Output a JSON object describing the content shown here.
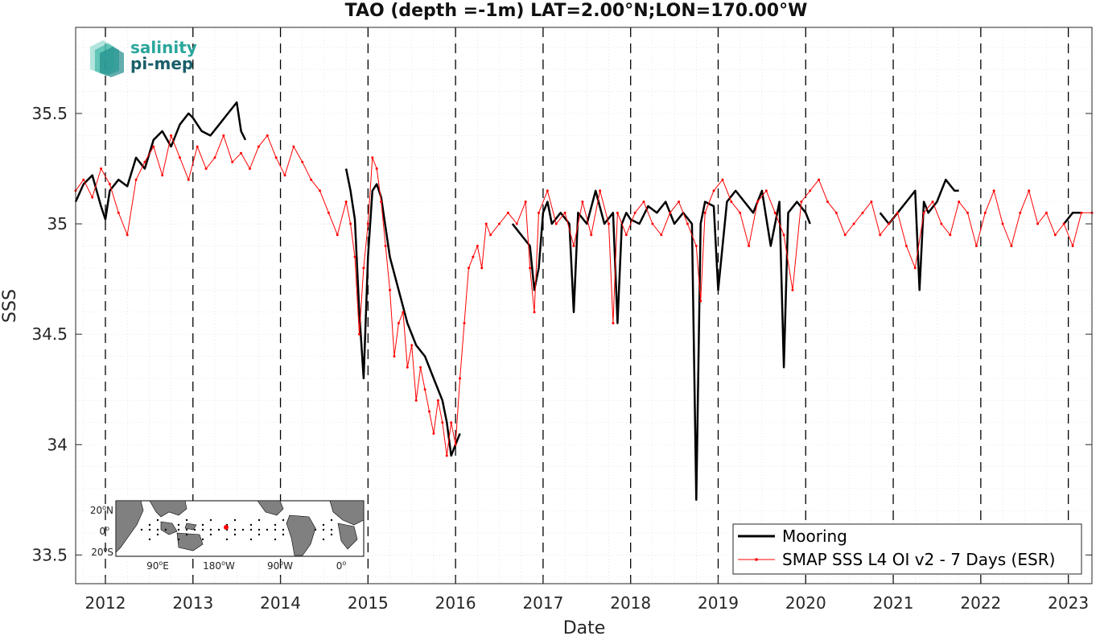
{
  "logo": {
    "line1": "salinity",
    "line2": "pi-mep",
    "color1": "#2aa69c",
    "color2": "#1a5e6a"
  },
  "inset_map": {
    "lat_labels": [
      {
        "value": "20",
        "hemi": "N"
      },
      {
        "value": "0",
        "hemi": ""
      },
      {
        "value": "20",
        "hemi": "S"
      }
    ],
    "lon_labels": [
      {
        "value": "90",
        "hemi": "E"
      },
      {
        "value": "180",
        "hemi": "W"
      },
      {
        "value": "90",
        "hemi": "W"
      },
      {
        "value": "0",
        "hemi": ""
      }
    ],
    "land_color": "#808080",
    "mooring_color": "#ff0000"
  },
  "chart_data": {
    "type": "line",
    "title": "TAO (depth =-1m) LAT=2.00°N;LON=170.00°W",
    "xlabel": "Date",
    "ylabel": "SSS",
    "xlim": [
      2011.66,
      2023.27
    ],
    "ylim": [
      33.37,
      35.89
    ],
    "yticks": [
      33.5,
      34,
      34.5,
      35,
      35.5
    ],
    "ytick_labels": [
      "33.5",
      "34",
      "34.5",
      "35",
      "35.5"
    ],
    "xticks": [
      2012,
      2013,
      2014,
      2015,
      2016,
      2017,
      2018,
      2019,
      2020,
      2021,
      2022,
      2023
    ],
    "xtick_labels": [
      "2012",
      "2013",
      "2014",
      "2015",
      "2016",
      "2017",
      "2018",
      "2019",
      "2020",
      "2021",
      "2022",
      "2023"
    ],
    "vlines": [
      2012,
      2013,
      2014,
      2015,
      2016,
      2017,
      2018,
      2019,
      2020,
      2021,
      2022,
      2023
    ],
    "grid": true,
    "legend_position": "bottom-right",
    "series": [
      {
        "name": "Mooring",
        "color": "#000000",
        "x": [
          2011.66,
          2011.75,
          2011.85,
          2011.95,
          2012.0,
          2012.05,
          2012.15,
          2012.25,
          2012.35,
          2012.45,
          2012.55,
          2012.65,
          2012.75,
          2012.85,
          2012.95,
          2013.0,
          2013.1,
          2013.2,
          2013.3,
          2013.4,
          2013.5,
          2013.55,
          2013.6,
          null,
          2014.75,
          2014.8,
          2014.85,
          2014.9,
          2014.95,
          2015.0,
          2015.05,
          2015.1,
          2015.15,
          2015.25,
          2015.35,
          2015.45,
          2015.55,
          2015.65,
          2015.75,
          2015.85,
          2015.9,
          2015.95,
          2016.0,
          2016.05,
          null,
          2016.65,
          2016.75,
          2016.85,
          2016.9,
          2016.95,
          2017.0,
          2017.05,
          2017.1,
          2017.2,
          2017.3,
          2017.35,
          2017.4,
          2017.5,
          2017.6,
          2017.7,
          2017.8,
          2017.85,
          2017.9,
          2017.95,
          2018.0,
          2018.1,
          2018.2,
          2018.3,
          2018.4,
          2018.5,
          2018.6,
          2018.7,
          2018.75,
          2018.8,
          2018.85,
          2018.95,
          2019.0,
          2019.1,
          2019.2,
          2019.3,
          2019.4,
          2019.5,
          2019.6,
          2019.7,
          2019.75,
          2019.8,
          2019.9,
          2020.0,
          2020.05,
          null,
          2020.85,
          2020.95,
          2021.05,
          2021.15,
          2021.25,
          2021.3,
          2021.35,
          2021.4,
          2021.5,
          2021.6,
          2021.7,
          2021.75,
          null,
          2022.95,
          2023.05,
          2023.15
        ],
        "y": [
          35.1,
          35.18,
          35.22,
          35.08,
          35.02,
          35.15,
          35.2,
          35.17,
          35.3,
          35.25,
          35.38,
          35.42,
          35.35,
          35.45,
          35.5,
          35.48,
          35.42,
          35.4,
          35.45,
          35.5,
          35.55,
          35.42,
          35.38,
          null,
          35.25,
          35.15,
          35.02,
          34.6,
          34.3,
          34.85,
          35.15,
          35.18,
          35.12,
          34.85,
          34.7,
          34.55,
          34.45,
          34.4,
          34.3,
          34.2,
          34.1,
          33.95,
          34.0,
          34.05,
          null,
          35.0,
          34.95,
          34.9,
          34.7,
          34.8,
          35.05,
          35.1,
          35.0,
          35.05,
          35.0,
          34.6,
          35.05,
          35.0,
          35.15,
          35.0,
          35.05,
          34.55,
          35.0,
          35.05,
          35.02,
          35.0,
          35.08,
          35.05,
          35.1,
          35.0,
          35.05,
          35.0,
          33.75,
          35.0,
          35.1,
          35.08,
          34.7,
          35.1,
          35.15,
          35.1,
          35.05,
          35.15,
          34.9,
          35.1,
          34.35,
          35.05,
          35.1,
          35.05,
          35.0,
          null,
          35.05,
          35.0,
          35.05,
          35.1,
          35.15,
          34.7,
          35.1,
          35.05,
          35.1,
          35.2,
          35.15,
          35.15,
          null,
          35.0,
          35.05,
          35.05
        ]
      },
      {
        "name": "SMAP SSS L4 OI v2 - 7 Days (ESR)",
        "color": "#ff0000",
        "x": [
          2011.66,
          2011.75,
          2011.85,
          2011.95,
          2012.05,
          2012.15,
          2012.25,
          2012.35,
          2012.45,
          2012.55,
          2012.65,
          2012.75,
          2012.85,
          2012.95,
          2013.05,
          2013.15,
          2013.25,
          2013.35,
          2013.45,
          2013.55,
          2013.65,
          2013.75,
          2013.85,
          2013.95,
          2014.05,
          2014.15,
          2014.25,
          2014.35,
          2014.45,
          2014.55,
          2014.65,
          2014.75,
          2014.8,
          2014.85,
          2014.9,
          2014.95,
          2015.0,
          2015.05,
          2015.1,
          2015.15,
          2015.2,
          2015.25,
          2015.3,
          2015.35,
          2015.4,
          2015.45,
          2015.5,
          2015.55,
          2015.6,
          2015.65,
          2015.7,
          2015.75,
          2015.8,
          2015.85,
          2015.9,
          2015.95,
          2016.0,
          2016.05,
          2016.1,
          2016.15,
          2016.2,
          2016.25,
          2016.3,
          2016.35,
          2016.4,
          2016.5,
          2016.6,
          2016.7,
          2016.8,
          2016.85,
          2016.9,
          2016.95,
          2017.05,
          2017.15,
          2017.25,
          2017.35,
          2017.45,
          2017.55,
          2017.65,
          2017.75,
          2017.8,
          2017.85,
          2017.95,
          2018.05,
          2018.15,
          2018.25,
          2018.35,
          2018.45,
          2018.55,
          2018.65,
          2018.75,
          2018.8,
          2018.85,
          2018.95,
          2019.05,
          2019.15,
          2019.25,
          2019.35,
          2019.45,
          2019.55,
          2019.65,
          2019.75,
          2019.85,
          2019.95,
          2020.05,
          2020.15,
          2020.25,
          2020.35,
          2020.45,
          2020.55,
          2020.65,
          2020.75,
          2020.85,
          2020.95,
          2021.05,
          2021.15,
          2021.25,
          2021.35,
          2021.45,
          2021.55,
          2021.65,
          2021.75,
          2021.85,
          2021.95,
          2022.05,
          2022.15,
          2022.25,
          2022.35,
          2022.45,
          2022.55,
          2022.65,
          2022.75,
          2022.85,
          2022.95,
          2023.05,
          2023.15,
          2023.27
        ],
        "y": [
          35.15,
          35.2,
          35.12,
          35.25,
          35.18,
          35.05,
          34.95,
          35.2,
          35.28,
          35.35,
          35.22,
          35.4,
          35.3,
          35.2,
          35.35,
          35.25,
          35.3,
          35.4,
          35.28,
          35.32,
          35.25,
          35.35,
          35.4,
          35.3,
          35.22,
          35.35,
          35.28,
          35.2,
          35.15,
          35.05,
          34.95,
          35.1,
          35.0,
          34.85,
          34.5,
          34.8,
          35.0,
          35.3,
          35.25,
          35.1,
          34.9,
          34.7,
          34.4,
          34.55,
          34.6,
          34.35,
          34.45,
          34.2,
          34.35,
          34.25,
          34.15,
          34.05,
          34.2,
          34.1,
          33.95,
          34.1,
          34.0,
          34.3,
          34.55,
          34.8,
          34.85,
          34.9,
          34.8,
          35.0,
          34.95,
          35.0,
          35.05,
          35.0,
          35.1,
          34.8,
          34.6,
          35.05,
          35.15,
          35.0,
          35.05,
          34.9,
          35.1,
          34.95,
          35.15,
          35.0,
          34.55,
          35.05,
          34.95,
          35.05,
          35.1,
          35.0,
          34.95,
          35.05,
          35.1,
          35.0,
          34.9,
          34.65,
          35.05,
          35.15,
          35.2,
          35.1,
          35.05,
          34.9,
          35.1,
          35.15,
          35.05,
          34.95,
          34.7,
          35.1,
          35.15,
          35.2,
          35.1,
          35.05,
          34.95,
          35.0,
          35.05,
          35.1,
          34.95,
          35.0,
          35.05,
          34.9,
          34.8,
          35.05,
          35.1,
          35.0,
          34.95,
          35.1,
          35.05,
          34.9,
          35.05,
          35.15,
          35.0,
          34.9,
          35.05,
          35.15,
          35.0,
          35.05,
          34.95,
          35.0,
          34.9,
          35.05,
          35.05
        ]
      }
    ]
  }
}
